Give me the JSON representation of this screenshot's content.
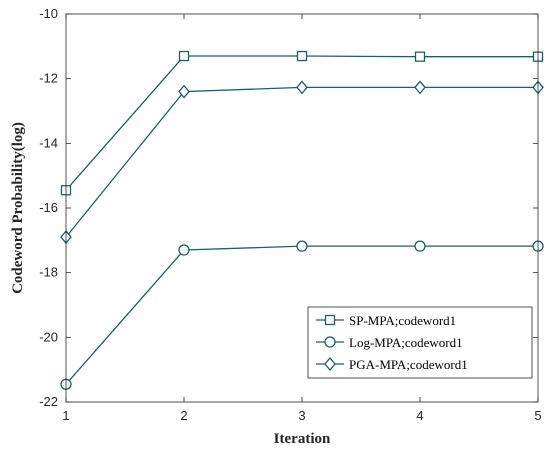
{
  "chart_data": {
    "type": "line",
    "title": "",
    "xlabel": "Iteration",
    "ylabel": "Codeword Probability(log)",
    "x": [
      1,
      2,
      3,
      4,
      5
    ],
    "xticks": [
      "1",
      "2",
      "3",
      "4",
      "5"
    ],
    "xlim": [
      1,
      5
    ],
    "ylim": [
      -22,
      -10
    ],
    "yticks": [
      "-22",
      "-20",
      "-18",
      "-16",
      "-14",
      "-12",
      "-10"
    ],
    "grid": false,
    "legend_position": "bottom-right",
    "line_color": "#1b5e6f",
    "series": [
      {
        "name": "SP-MPA;codeword1",
        "marker": "square",
        "values": [
          -15.45,
          -11.3,
          -11.3,
          -11.32,
          -11.32
        ]
      },
      {
        "name": "Log-MPA;codeword1",
        "marker": "circle",
        "values": [
          -21.45,
          -17.3,
          -17.18,
          -17.18,
          -17.18
        ]
      },
      {
        "name": "PGA-MPA;codeword1",
        "marker": "diamond",
        "values": [
          -16.9,
          -12.4,
          -12.27,
          -12.27,
          -12.27
        ]
      }
    ]
  }
}
